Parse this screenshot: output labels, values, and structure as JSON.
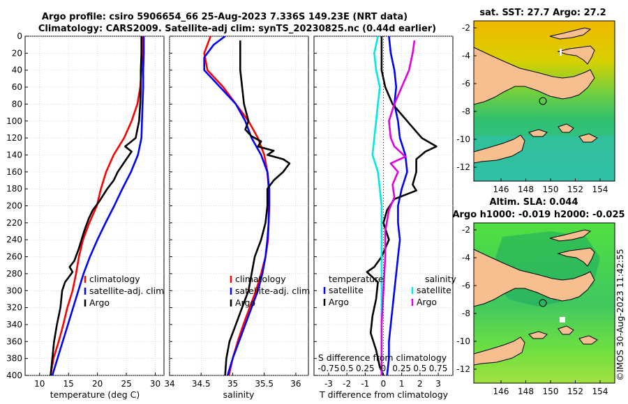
{
  "header": {
    "line1": "Argo profile: csiro 5906654_66 25-Aug-2023 7.336S 149.23E (NRT data)",
    "line2": "Climatology: CARS2009. Satellite-adj clim: synTS_20230825.nc (0.44d earlier)"
  },
  "colors": {
    "climatology": "#ff0000",
    "satellite": "#0000ff",
    "argo": "#000000",
    "sat_diff_s": "#00e8e8",
    "argo_diff_s": "#e000e0"
  },
  "depth_axis": {
    "ticks": [
      0,
      20,
      40,
      60,
      80,
      100,
      120,
      140,
      160,
      180,
      200,
      220,
      240,
      260,
      280,
      300,
      320,
      340,
      360,
      380,
      400
    ]
  },
  "chart_data": [
    {
      "type": "line",
      "name": "temperature",
      "xlabel": "temperature (deg C)",
      "xlim": [
        7.5,
        31.5
      ],
      "ylim": [
        400,
        0
      ],
      "xticks": [
        "10",
        "15",
        "20",
        "25",
        "30"
      ],
      "legend": [
        "climatology",
        "satellite-adj. clim",
        "Argo"
      ],
      "series": [
        {
          "name": "climatology",
          "color": "#ff0000",
          "points": [
            [
              27.7,
              0
            ],
            [
              27.7,
              20
            ],
            [
              27.6,
              40
            ],
            [
              27.4,
              60
            ],
            [
              26.9,
              80
            ],
            [
              25.9,
              100
            ],
            [
              24.6,
              120
            ],
            [
              22.8,
              140
            ],
            [
              21.5,
              160
            ],
            [
              20.6,
              180
            ],
            [
              19.9,
              200
            ],
            [
              18.6,
              220
            ],
            [
              17.5,
              240
            ],
            [
              16.8,
              260
            ],
            [
              16.3,
              280
            ],
            [
              15.7,
              300
            ],
            [
              14.8,
              320
            ],
            [
              14.1,
              340
            ],
            [
              13.3,
              360
            ],
            [
              12.4,
              380
            ],
            [
              11.9,
              400
            ]
          ]
        },
        {
          "name": "satellite-adj. clim",
          "color": "#0000ff",
          "points": [
            [
              28.0,
              0
            ],
            [
              28.0,
              20
            ],
            [
              27.9,
              40
            ],
            [
              27.9,
              60
            ],
            [
              27.8,
              80
            ],
            [
              27.7,
              100
            ],
            [
              27.6,
              120
            ],
            [
              27.0,
              140
            ],
            [
              25.8,
              160
            ],
            [
              24.3,
              180
            ],
            [
              22.9,
              200
            ],
            [
              21.4,
              220
            ],
            [
              20.0,
              240
            ],
            [
              18.7,
              260
            ],
            [
              17.6,
              280
            ],
            [
              16.7,
              300
            ],
            [
              15.8,
              320
            ],
            [
              14.9,
              340
            ],
            [
              14.0,
              360
            ],
            [
              13.1,
              380
            ],
            [
              12.2,
              400
            ]
          ]
        },
        {
          "name": "Argo",
          "color": "#000000",
          "points": [
            [
              27.6,
              0
            ],
            [
              27.6,
              20
            ],
            [
              27.5,
              40
            ],
            [
              27.5,
              60
            ],
            [
              27.4,
              80
            ],
            [
              27.2,
              100
            ],
            [
              26.6,
              120
            ],
            [
              24.8,
              130
            ],
            [
              25.9,
              136
            ],
            [
              25.0,
              145
            ],
            [
              23.5,
              160
            ],
            [
              22.8,
              170
            ],
            [
              21.7,
              180
            ],
            [
              20.3,
              195
            ],
            [
              19.2,
              205
            ],
            [
              18.5,
              215
            ],
            [
              17.7,
              230
            ],
            [
              16.8,
              250
            ],
            [
              16.0,
              265
            ],
            [
              15.2,
              272
            ],
            [
              15.7,
              278
            ],
            [
              14.4,
              290
            ],
            [
              13.9,
              300
            ],
            [
              13.6,
              320
            ],
            [
              13.0,
              340
            ],
            [
              12.5,
              360
            ],
            [
              12.2,
              380
            ],
            [
              11.9,
              400
            ]
          ]
        }
      ]
    },
    {
      "type": "line",
      "name": "salinity",
      "xlabel": "salinity",
      "xlim": [
        34.0,
        36.2
      ],
      "ylim": [
        400,
        0
      ],
      "xticks": [
        "34",
        "34.5",
        "35",
        "35.5",
        "36"
      ],
      "legend": [
        "climatology",
        "satellite-adj. clim",
        "Argo"
      ],
      "series": [
        {
          "name": "climatology",
          "color": "#ff0000",
          "points": [
            [
              34.65,
              0
            ],
            [
              34.55,
              20
            ],
            [
              34.6,
              40
            ],
            [
              34.85,
              60
            ],
            [
              35.05,
              80
            ],
            [
              35.25,
              100
            ],
            [
              35.4,
              120
            ],
            [
              35.5,
              140
            ],
            [
              35.55,
              160
            ],
            [
              35.57,
              180
            ],
            [
              35.57,
              200
            ],
            [
              35.57,
              220
            ],
            [
              35.56,
              240
            ],
            [
              35.52,
              260
            ],
            [
              35.45,
              280
            ],
            [
              35.37,
              300
            ],
            [
              35.27,
              320
            ],
            [
              35.17,
              340
            ],
            [
              35.08,
              360
            ],
            [
              35.0,
              380
            ],
            [
              34.94,
              400
            ]
          ]
        },
        {
          "name": "satellite-adj. clim",
          "color": "#0000ff",
          "points": [
            [
              34.88,
              0
            ],
            [
              34.7,
              10
            ],
            [
              34.55,
              25
            ],
            [
              34.55,
              40
            ],
            [
              34.8,
              60
            ],
            [
              35.05,
              80
            ],
            [
              35.2,
              100
            ],
            [
              35.3,
              120
            ],
            [
              35.45,
              140
            ],
            [
              35.55,
              160
            ],
            [
              35.58,
              180
            ],
            [
              35.58,
              200
            ],
            [
              35.57,
              220
            ],
            [
              35.55,
              240
            ],
            [
              35.52,
              260
            ],
            [
              35.47,
              280
            ],
            [
              35.4,
              300
            ],
            [
              35.3,
              320
            ],
            [
              35.2,
              340
            ],
            [
              35.1,
              360
            ],
            [
              35.0,
              380
            ],
            [
              34.92,
              400
            ]
          ]
        },
        {
          "name": "Argo",
          "color": "#000000",
          "points": [
            [
              35.12,
              5
            ],
            [
              35.12,
              20
            ],
            [
              35.12,
              40
            ],
            [
              35.15,
              60
            ],
            [
              35.18,
              80
            ],
            [
              35.25,
              100
            ],
            [
              35.2,
              110
            ],
            [
              35.3,
              118
            ],
            [
              35.45,
              124
            ],
            [
              35.4,
              130
            ],
            [
              35.65,
              135
            ],
            [
              35.55,
              140
            ],
            [
              35.8,
              145
            ],
            [
              35.9,
              150
            ],
            [
              35.8,
              160
            ],
            [
              35.65,
              170
            ],
            [
              35.55,
              180
            ],
            [
              35.55,
              200
            ],
            [
              35.52,
              220
            ],
            [
              35.45,
              240
            ],
            [
              35.35,
              260
            ],
            [
              35.3,
              280
            ],
            [
              35.25,
              300
            ],
            [
              35.15,
              320
            ],
            [
              35.05,
              340
            ],
            [
              34.95,
              360
            ],
            [
              34.9,
              380
            ],
            [
              34.88,
              400
            ]
          ]
        }
      ]
    },
    {
      "type": "line",
      "name": "difference",
      "xlabel": "T difference from climatology",
      "top_xlabel": "S difference from climatology",
      "xlim": [
        -3.8,
        3.8
      ],
      "ylim": [
        400,
        0
      ],
      "xticks": [
        "-3",
        "-2",
        "-1",
        "0",
        "1",
        "2",
        "3"
      ],
      "top_xticks": [
        "-0.75",
        "0.5",
        "0.25",
        "0",
        "0.25",
        "0.5",
        "0.75"
      ],
      "legend_temperature_title": "temperature",
      "legend_salinity_title": "salinity",
      "legend": [
        "satellite",
        "Argo",
        "satellite",
        "Argo"
      ],
      "series": [
        {
          "name": "temperature satellite",
          "color": "#0000ff",
          "points": [
            [
              0.3,
              0
            ],
            [
              0.4,
              20
            ],
            [
              0.6,
              40
            ],
            [
              0.7,
              60
            ],
            [
              0.6,
              80
            ],
            [
              0.8,
              100
            ],
            [
              0.9,
              120
            ],
            [
              1.2,
              140
            ],
            [
              1.3,
              160
            ],
            [
              1.0,
              180
            ],
            [
              0.8,
              200
            ],
            [
              0.8,
              220
            ],
            [
              0.9,
              240
            ],
            [
              0.8,
              260
            ],
            [
              0.7,
              280
            ],
            [
              0.6,
              300
            ],
            [
              0.5,
              320
            ],
            [
              0.4,
              340
            ],
            [
              0.3,
              360
            ],
            [
              0.3,
              380
            ],
            [
              0.2,
              400
            ]
          ]
        },
        {
          "name": "temperature Argo",
          "color": "#000000",
          "points": [
            [
              -0.1,
              0
            ],
            [
              -0.1,
              20
            ],
            [
              -0.1,
              40
            ],
            [
              0.1,
              60
            ],
            [
              0.5,
              80
            ],
            [
              1.3,
              100
            ],
            [
              2.1,
              120
            ],
            [
              2.9,
              130
            ],
            [
              2.3,
              136
            ],
            [
              1.8,
              145
            ],
            [
              1.8,
              160
            ],
            [
              1.6,
              175
            ],
            [
              1.8,
              182
            ],
            [
              0.6,
              192
            ],
            [
              0.2,
              205
            ],
            [
              0.0,
              220
            ],
            [
              0.3,
              240
            ],
            [
              -0.1,
              260
            ],
            [
              -0.5,
              272
            ],
            [
              -0.9,
              278
            ],
            [
              -0.3,
              290
            ],
            [
              -0.4,
              310
            ],
            [
              -0.6,
              330
            ],
            [
              -0.7,
              350
            ],
            [
              -0.4,
              370
            ],
            [
              -0.2,
              390
            ],
            [
              0.0,
              400
            ]
          ]
        },
        {
          "name": "salinity satellite",
          "color": "#00e8e8",
          "points": [
            [
              -0.3,
              0
            ],
            [
              -0.5,
              20
            ],
            [
              -0.4,
              40
            ],
            [
              -0.2,
              60
            ],
            [
              -0.3,
              80
            ],
            [
              -0.4,
              100
            ],
            [
              -0.5,
              120
            ],
            [
              -0.6,
              140
            ],
            [
              -0.3,
              160
            ],
            [
              -0.2,
              180
            ],
            [
              -0.1,
              200
            ],
            [
              -0.1,
              220
            ],
            [
              -0.1,
              240
            ],
            [
              -0.1,
              260
            ],
            [
              -0.1,
              280
            ],
            [
              -0.1,
              300
            ],
            [
              -0.1,
              320
            ],
            [
              -0.1,
              340
            ],
            [
              -0.1,
              360
            ],
            [
              -0.1,
              380
            ],
            [
              -0.1,
              400
            ]
          ]
        },
        {
          "name": "salinity Argo",
          "color": "#e000e0",
          "points": [
            [
              1.7,
              5
            ],
            [
              1.6,
              20
            ],
            [
              1.4,
              40
            ],
            [
              1.0,
              60
            ],
            [
              0.6,
              80
            ],
            [
              0.3,
              100
            ],
            [
              0.4,
              120
            ],
            [
              0.6,
              130
            ],
            [
              0.9,
              136
            ],
            [
              1.2,
              142
            ],
            [
              0.4,
              150
            ],
            [
              0.8,
              160
            ],
            [
              0.5,
              175
            ],
            [
              0.6,
              190
            ],
            [
              0.3,
              205
            ],
            [
              0.1,
              230
            ],
            [
              0.1,
              260
            ],
            [
              0.0,
              300
            ],
            [
              -0.1,
              340
            ],
            [
              -0.1,
              380
            ],
            [
              -0.1,
              400
            ]
          ]
        }
      ]
    }
  ],
  "maps": {
    "sst_title": "sat. SST: 27.7 Argo: 27.2",
    "sla_title1": "Altim. SLA: 0.044",
    "sla_title2": "Argo h1000: -0.019 h2000: -0.025",
    "lat_ticks": [
      "-2",
      "-4",
      "-6",
      "-8",
      "-10",
      "-12"
    ],
    "lon_ticks": [
      "146",
      "148",
      "150",
      "152",
      "154"
    ]
  },
  "footer": {
    "watermark": "©IMOS 30-Aug-2023 11:42:55"
  }
}
